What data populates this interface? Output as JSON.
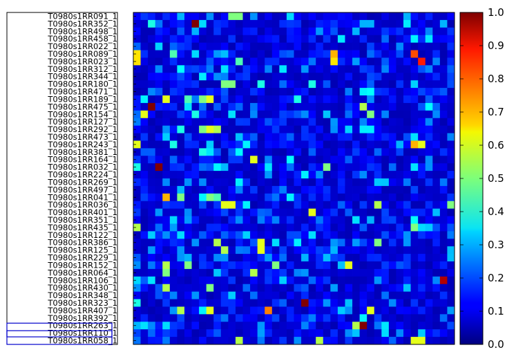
{
  "chart_data": {
    "type": "heatmap",
    "title": "",
    "xlabel": "",
    "ylabel": "",
    "rows": [
      "T0980s1RR091_1",
      "T0980s1RR352_1",
      "T0980s1RR498_1",
      "T0980s1RR458_1",
      "T0980s1RR022_1",
      "T0980s1RR089_1",
      "T0980s1RR023_1",
      "T0980s1RR312_1",
      "T0980s1RR344_1",
      "T0980s1RR180_1",
      "T0980s1RR471_1",
      "T0980s1RR189_1",
      "T0980s1RR475_1",
      "T0980s1RR154_1",
      "T0980s1RR127_1",
      "T0980s1RR292_1",
      "T0980s1RR473_1",
      "T0980s1RR243_1",
      "T0980s1RR381_1",
      "T0980s1RR164_1",
      "T0980s1RR032_1",
      "T0980s1RR224_1",
      "T0980s1RR269_1",
      "T0980s1RR497_1",
      "T0980s1RR041_1",
      "T0980s1RR036_1",
      "T0980s1RR401_1",
      "T0980s1RR351_1",
      "T0980s1RR435_1",
      "T0980s1RR122_1",
      "T0980s1RR386_1",
      "T0980s1RR125_1",
      "T0980s1RR229_1",
      "T0980s1RR152_1",
      "T0980s1RR064_1",
      "T0980s1RR106_1",
      "T0980s1RR430_1",
      "T0980s1RR348_1",
      "T0980s1RR323_1",
      "T0980s1RR407_1",
      "T0980s1RR392_1",
      "T0980s1RR263_1",
      "T0980s1RR110_1",
      "T0980s1RR058_1"
    ],
    "num_columns": 44,
    "colorbar": {
      "min": 0.0,
      "max": 1.0,
      "ticks": [
        "0.0",
        "0.1",
        "0.2",
        "0.3",
        "0.4",
        "0.5",
        "0.6",
        "0.7",
        "0.8",
        "0.9",
        "1.0"
      ],
      "colormap": "jet"
    },
    "highlighted_rows": [
      "T0980s1RR263_1",
      "T0980s1RR110_1"
    ],
    "background_value": 0.05,
    "highlights": [
      {
        "row": 0,
        "col": 6,
        "value": 0.3
      },
      {
        "row": 0,
        "col": 13,
        "value": 0.5
      },
      {
        "row": 0,
        "col": 14,
        "value": 0.5
      },
      {
        "row": 0,
        "col": 37,
        "value": 0.3
      },
      {
        "row": 1,
        "col": 2,
        "value": 0.4
      },
      {
        "row": 1,
        "col": 8,
        "value": 1.0
      },
      {
        "row": 1,
        "col": 31,
        "value": 0.3
      },
      {
        "row": 1,
        "col": 32,
        "value": 0.3
      },
      {
        "row": 1,
        "col": 42,
        "value": 0.3
      },
      {
        "row": 2,
        "col": 8,
        "value": 0.3
      },
      {
        "row": 5,
        "col": 0,
        "value": 0.65
      },
      {
        "row": 5,
        "col": 5,
        "value": 0.45
      },
      {
        "row": 5,
        "col": 27,
        "value": 0.7
      },
      {
        "row": 5,
        "col": 38,
        "value": 0.8
      },
      {
        "row": 6,
        "col": 0,
        "value": 0.65
      },
      {
        "row": 6,
        "col": 14,
        "value": 0.45
      },
      {
        "row": 6,
        "col": 27,
        "value": 0.65
      },
      {
        "row": 6,
        "col": 39,
        "value": 0.85
      },
      {
        "row": 9,
        "col": 12,
        "value": 0.5
      },
      {
        "row": 9,
        "col": 13,
        "value": 0.5
      },
      {
        "row": 9,
        "col": 17,
        "value": 0.4
      },
      {
        "row": 9,
        "col": 24,
        "value": 0.4
      },
      {
        "row": 11,
        "col": 4,
        "value": 0.6
      },
      {
        "row": 11,
        "col": 7,
        "value": 0.45
      },
      {
        "row": 11,
        "col": 9,
        "value": 0.5
      },
      {
        "row": 11,
        "col": 10,
        "value": 0.6
      },
      {
        "row": 11,
        "col": 22,
        "value": 0.4
      },
      {
        "row": 12,
        "col": 2,
        "value": 1.0
      },
      {
        "row": 12,
        "col": 7,
        "value": 0.35
      },
      {
        "row": 12,
        "col": 31,
        "value": 0.55
      },
      {
        "row": 13,
        "col": 1,
        "value": 0.6
      },
      {
        "row": 13,
        "col": 8,
        "value": 0.4
      },
      {
        "row": 13,
        "col": 32,
        "value": 0.5
      },
      {
        "row": 15,
        "col": 6,
        "value": 0.4
      },
      {
        "row": 15,
        "col": 9,
        "value": 0.5
      },
      {
        "row": 15,
        "col": 10,
        "value": 0.6
      },
      {
        "row": 15,
        "col": 11,
        "value": 0.55
      },
      {
        "row": 17,
        "col": 0,
        "value": 0.6
      },
      {
        "row": 17,
        "col": 5,
        "value": 0.4
      },
      {
        "row": 17,
        "col": 38,
        "value": 0.7
      },
      {
        "row": 17,
        "col": 39,
        "value": 0.6
      },
      {
        "row": 18,
        "col": 9,
        "value": 0.4
      },
      {
        "row": 18,
        "col": 10,
        "value": 0.35
      },
      {
        "row": 19,
        "col": 16,
        "value": 0.6
      },
      {
        "row": 20,
        "col": 0,
        "value": 0.4
      },
      {
        "row": 20,
        "col": 3,
        "value": 1.0
      },
      {
        "row": 20,
        "col": 26,
        "value": 0.5
      },
      {
        "row": 20,
        "col": 38,
        "value": 0.35
      },
      {
        "row": 24,
        "col": 4,
        "value": 0.7
      },
      {
        "row": 24,
        "col": 6,
        "value": 0.5
      },
      {
        "row": 24,
        "col": 10,
        "value": 0.5
      },
      {
        "row": 24,
        "col": 11,
        "value": 0.45
      },
      {
        "row": 25,
        "col": 12,
        "value": 0.6
      },
      {
        "row": 25,
        "col": 13,
        "value": 0.6
      },
      {
        "row": 25,
        "col": 33,
        "value": 0.55
      },
      {
        "row": 25,
        "col": 43,
        "value": 0.5
      },
      {
        "row": 26,
        "col": 24,
        "value": 0.6
      },
      {
        "row": 28,
        "col": 0,
        "value": 0.55
      },
      {
        "row": 28,
        "col": 38,
        "value": 0.5
      },
      {
        "row": 30,
        "col": 11,
        "value": 0.55
      },
      {
        "row": 30,
        "col": 17,
        "value": 0.6
      },
      {
        "row": 30,
        "col": 33,
        "value": 0.5
      },
      {
        "row": 31,
        "col": 12,
        "value": 0.55
      },
      {
        "row": 31,
        "col": 17,
        "value": 0.6
      },
      {
        "row": 33,
        "col": 4,
        "value": 0.55
      },
      {
        "row": 33,
        "col": 7,
        "value": 0.5
      },
      {
        "row": 33,
        "col": 19,
        "value": 0.5
      },
      {
        "row": 33,
        "col": 29,
        "value": 0.6
      },
      {
        "row": 34,
        "col": 4,
        "value": 0.5
      },
      {
        "row": 34,
        "col": 16,
        "value": 0.55
      },
      {
        "row": 35,
        "col": 2,
        "value": 0.35
      },
      {
        "row": 35,
        "col": 42,
        "value": 0.95
      },
      {
        "row": 36,
        "col": 4,
        "value": 0.55
      },
      {
        "row": 36,
        "col": 10,
        "value": 0.5
      },
      {
        "row": 38,
        "col": 0,
        "value": 0.4
      },
      {
        "row": 38,
        "col": 23,
        "value": 1.0
      },
      {
        "row": 39,
        "col": 6,
        "value": 0.55
      },
      {
        "row": 39,
        "col": 10,
        "value": 0.6
      },
      {
        "row": 39,
        "col": 18,
        "value": 0.75
      },
      {
        "row": 39,
        "col": 32,
        "value": 0.6
      },
      {
        "row": 41,
        "col": 30,
        "value": 0.55
      },
      {
        "row": 41,
        "col": 31,
        "value": 1.0
      },
      {
        "row": 43,
        "col": 14,
        "value": 0.55
      },
      {
        "row": 43,
        "col": 25,
        "value": 0.55
      },
      {
        "row": 43,
        "col": 38,
        "value": 0.6
      },
      {
        "row": 43,
        "col": 39,
        "value": 0.6
      }
    ]
  }
}
